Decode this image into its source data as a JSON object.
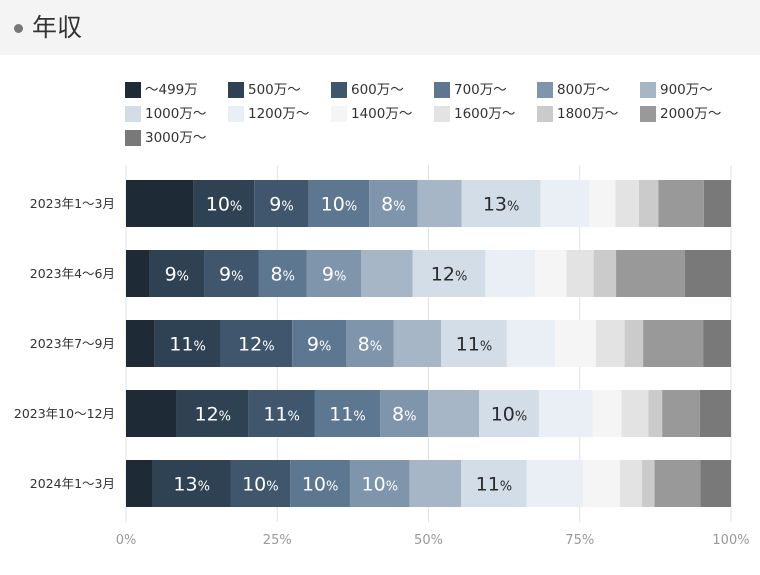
{
  "header": {
    "title": "年収"
  },
  "chart_data": {
    "type": "bar",
    "orientation": "horizontal",
    "stacked": true,
    "percent_stacked": true,
    "categories": [
      "2023年1～3月",
      "2023年4～6月",
      "2023年7～9月",
      "2023年10～12月",
      "2024年1～3月"
    ],
    "xlim": [
      0,
      100
    ],
    "xticks": [
      "0%",
      "25%",
      "50%",
      "75%",
      "100%"
    ],
    "grid": true,
    "legend_position": "top",
    "series": [
      {
        "name": "～499万",
        "color": "#1e2a36",
        "values": [
          11.2,
          3.9,
          4.8,
          8.5,
          4.5
        ]
      },
      {
        "name": "500万～",
        "color": "#2f4254",
        "values": [
          10,
          9,
          11,
          12,
          13
        ]
      },
      {
        "name": "600万～",
        "color": "#3f566d",
        "values": [
          9,
          9,
          12,
          11,
          10
        ]
      },
      {
        "name": "700万～",
        "color": "#5e7790",
        "values": [
          10,
          8,
          9,
          11,
          10
        ]
      },
      {
        "name": "800万～",
        "color": "#7f95ac",
        "values": [
          8,
          9,
          8,
          8,
          10
        ]
      },
      {
        "name": "900万～",
        "color": "#a6b6c7",
        "values": [
          7.3,
          8.5,
          7.9,
          8.5,
          8.6
        ]
      },
      {
        "name": "1000万～",
        "color": "#d2dde7",
        "values": [
          13,
          12,
          11,
          10,
          11
        ]
      },
      {
        "name": "1200万～",
        "color": "#e9eff4",
        "values": [
          8.1,
          8.2,
          8.1,
          9,
          9.4
        ]
      },
      {
        "name": "1400万～",
        "color": "#f5f5f5",
        "values": [
          4.3,
          5.2,
          6.8,
          4.8,
          6.2
        ]
      },
      {
        "name": "1600万～",
        "color": "#e3e3e3",
        "values": [
          3.9,
          4.5,
          4.8,
          4.5,
          3.7
        ]
      },
      {
        "name": "1800万～",
        "color": "#cbcbcb",
        "values": [
          3.2,
          3.7,
          3.1,
          2.3,
          2.1
        ]
      },
      {
        "name": "2000万～",
        "color": "#999999",
        "values": [
          7.5,
          11.4,
          10.1,
          6.3,
          7.7
        ]
      },
      {
        "name": "3000万～",
        "color": "#797979",
        "values": [
          4.5,
          7.6,
          4.6,
          5.2,
          5.1
        ]
      }
    ],
    "data_labels": [
      [
        null,
        "10%",
        "9%",
        "10%",
        "8%",
        null,
        "13%",
        null,
        null,
        null,
        null,
        null,
        null
      ],
      [
        null,
        "9%",
        "9%",
        "8%",
        "9%",
        null,
        "12%",
        null,
        null,
        null,
        null,
        null,
        null
      ],
      [
        null,
        "11%",
        "12%",
        "9%",
        "8%",
        null,
        "11%",
        null,
        null,
        null,
        null,
        null,
        null
      ],
      [
        null,
        "12%",
        "11%",
        "11%",
        "8%",
        null,
        "10%",
        null,
        null,
        null,
        null,
        null,
        null
      ],
      [
        null,
        "13%",
        "10%",
        "10%",
        "10%",
        null,
        "11%",
        null,
        null,
        null,
        null,
        null,
        null
      ]
    ]
  }
}
